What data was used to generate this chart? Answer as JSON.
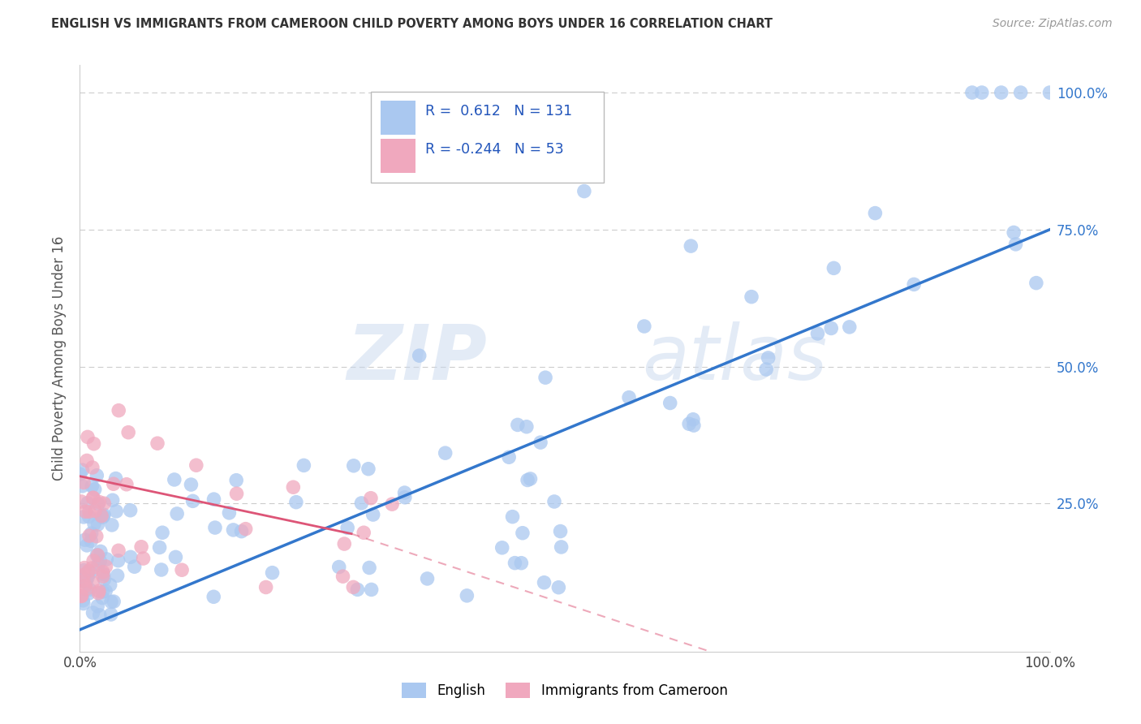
{
  "title": "ENGLISH VS IMMIGRANTS FROM CAMEROON CHILD POVERTY AMONG BOYS UNDER 16 CORRELATION CHART",
  "source": "Source: ZipAtlas.com",
  "ylabel": "Child Poverty Among Boys Under 16",
  "english_R": 0.612,
  "english_N": 131,
  "cameroon_R": -0.244,
  "cameroon_N": 53,
  "english_color": "#aac8f0",
  "cameroon_color": "#f0a8be",
  "english_line_color": "#3377cc",
  "cameroon_line_color": "#dd5577",
  "watermark_zip": "ZIP",
  "watermark_atlas": "atlas",
  "xlim": [
    0.0,
    1.0
  ],
  "ylim": [
    -0.02,
    1.05
  ],
  "xticks": [
    0.0,
    0.25,
    0.5,
    0.75,
    1.0
  ],
  "yticks": [
    0.0,
    0.25,
    0.5,
    0.75,
    1.0
  ],
  "xticklabels": [
    "0.0%",
    "",
    "",
    "",
    "100.0%"
  ],
  "right_yticklabels": [
    "",
    "25.0%",
    "50.0%",
    "75.0%",
    "100.0%"
  ],
  "background_color": "#ffffff",
  "grid_color": "#cccccc"
}
